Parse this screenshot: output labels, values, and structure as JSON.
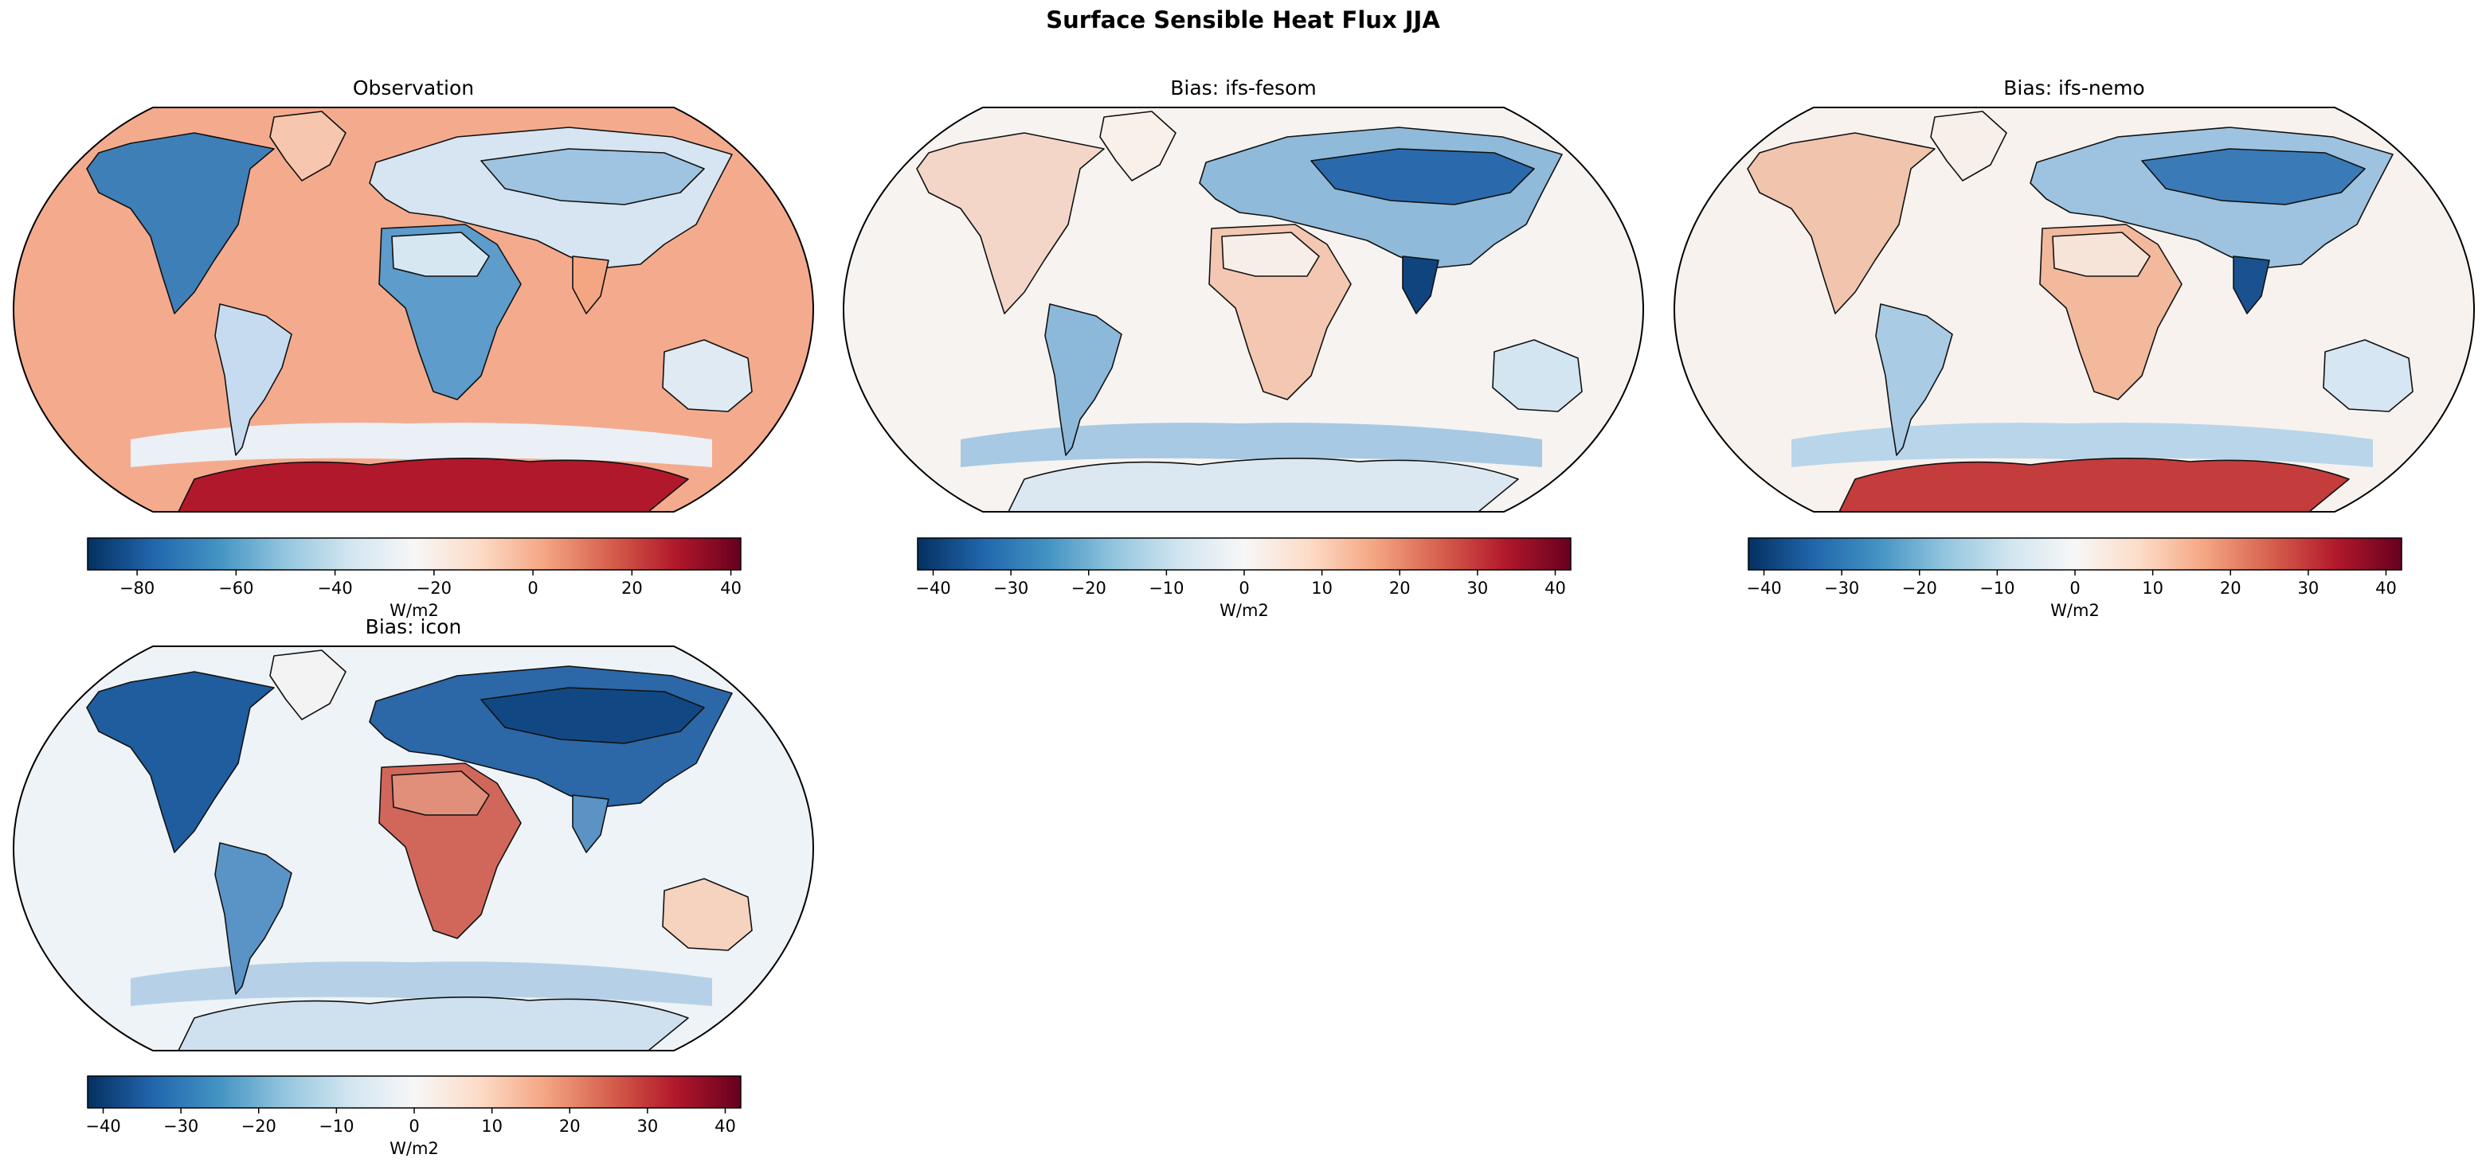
{
  "figure": {
    "title": "Surface Sensible Heat Flux JJA"
  },
  "colors": {
    "land_outline": "#111111",
    "frame": "#000000"
  },
  "panels": [
    {
      "id": "observation",
      "title": "Observation",
      "background": "#f4ab8d",
      "colorbar": {
        "cmap": "RdBu_r",
        "ticks": [
          -80,
          -60,
          -40,
          -20,
          0,
          20,
          40
        ],
        "vmin": -90,
        "vmax": 42,
        "unit": "W/m2"
      },
      "regions": {
        "north_america": "#3f7fb8",
        "greenland": "#f7c6ae",
        "south_america": "#c6dbef",
        "africa": "#5d9ccb",
        "sahara": "#d7e7f2",
        "eurasia": "#d6e5f1",
        "siberia": "#9fc4e1",
        "india": "#f4a582",
        "australia": "#dfeaf3",
        "antarctica": "#b2182b",
        "southern_band": "#eaf0f5"
      }
    },
    {
      "id": "ifs-fesom",
      "title": "Bias: ifs-fesom",
      "background": "#f7f3f0",
      "colorbar": {
        "cmap": "RdBu_r",
        "ticks": [
          -40,
          -30,
          -20,
          -10,
          0,
          10,
          20,
          30,
          40
        ],
        "vmin": -42,
        "vmax": 42,
        "unit": "W/m2"
      },
      "regions": {
        "north_america": "#f4d6c8",
        "greenland": "#f9f0ea",
        "south_america": "#8cb9da",
        "africa": "#f3c7b1",
        "sahara": "#f8eee8",
        "eurasia": "#8fbada",
        "siberia": "#2a6aac",
        "india": "#0f447f",
        "australia": "#d3e5f1",
        "antarctica": "#dbe8f2",
        "southern_band": "#a7c9e3"
      }
    },
    {
      "id": "ifs-nemo",
      "title": "Bias: ifs-nemo",
      "background": "#f7f2ee",
      "colorbar": {
        "cmap": "RdBu_r",
        "ticks": [
          -40,
          -30,
          -20,
          -10,
          0,
          10,
          20,
          30,
          40
        ],
        "vmin": -42,
        "vmax": 42,
        "unit": "W/m2"
      },
      "regions": {
        "north_america": "#f1c4ae",
        "greenland": "#f6efea",
        "south_america": "#a9cbe4",
        "africa": "#f2b99d",
        "sahara": "#f6e4d8",
        "eurasia": "#9ec3e0",
        "siberia": "#3a7ab7",
        "india": "#19528f",
        "australia": "#d6e6f2",
        "antarctica": "#c43c3c",
        "southern_band": "#b9d5ea"
      }
    },
    {
      "id": "icon",
      "title": "Bias: icon",
      "background": "#eef3f7",
      "colorbar": {
        "cmap": "RdBu_r",
        "ticks": [
          -40,
          -30,
          -20,
          -10,
          0,
          10,
          20,
          30,
          40
        ],
        "vmin": -42,
        "vmax": 42,
        "unit": "W/m2"
      },
      "regions": {
        "north_america": "#1f5d9f",
        "greenland": "#f3f3f3",
        "south_america": "#5a94c7",
        "africa": "#d1675a",
        "sahara": "#e18f7a",
        "eurasia": "#2c67a8",
        "siberia": "#114883",
        "india": "#5b93c5",
        "australia": "#f6d3bf",
        "antarctica": "#cfe0ee",
        "southern_band": "#b6d1e7"
      }
    }
  ]
}
